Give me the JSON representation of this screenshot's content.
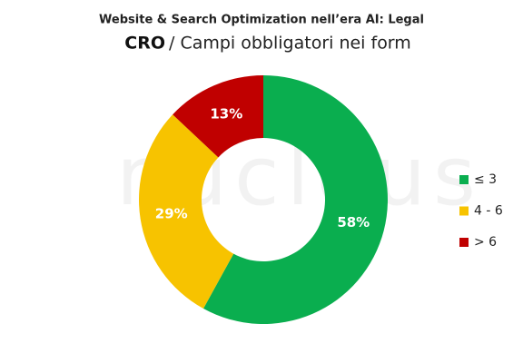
{
  "chart_data": {
    "type": "donut",
    "title": "Website & Search Optimization nell’era AI: Legal",
    "subtitle_bold": "CRO",
    "subtitle": "/ Campi obbligatori nei form",
    "watermark": "nucleus",
    "categories": [
      "≤ 3",
      "4 - 6",
      "> 6"
    ],
    "values": [
      58,
      29,
      13
    ],
    "value_labels": [
      "58%",
      "29%",
      "13%"
    ],
    "colors": [
      "#0aae4f",
      "#f7c300",
      "#c00000"
    ],
    "legend": "right"
  }
}
